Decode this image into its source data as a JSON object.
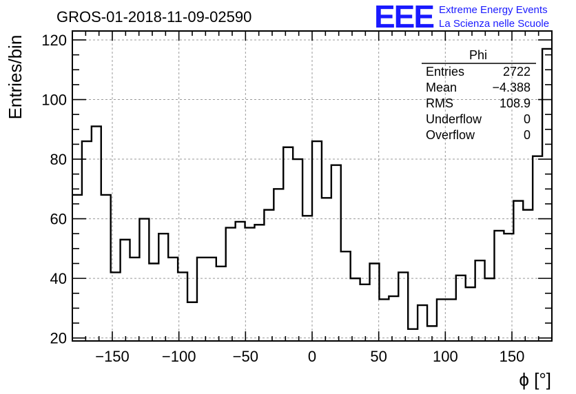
{
  "chart_data": {
    "type": "histogram",
    "title": "GROS-01-2018-11-09-02590",
    "xlabel": "ϕ [°]",
    "ylabel": "Entries/bin",
    "xlim": [
      -180,
      180
    ],
    "ylim": [
      19,
      123
    ],
    "bin_width": 7.2,
    "x_ticks": [
      -150,
      -100,
      -50,
      0,
      50,
      100,
      150
    ],
    "x_tick_labels": [
      "−150",
      "−100",
      "−50",
      "0",
      "50",
      "100",
      "150"
    ],
    "y_ticks": [
      20,
      40,
      60,
      80,
      100,
      120
    ],
    "y_tick_labels": [
      "20",
      "40",
      "60",
      "80",
      "100",
      "120"
    ],
    "grid": true,
    "values": [
      68,
      86,
      91,
      68,
      42,
      53,
      47,
      60,
      45,
      55,
      47,
      42,
      32,
      47,
      47,
      44,
      57,
      59,
      57,
      58,
      63,
      70,
      84,
      80,
      61,
      86,
      67,
      78,
      49,
      40,
      38,
      45,
      33,
      34,
      42,
      23,
      31,
      24,
      33,
      33,
      41,
      37,
      46,
      40,
      56,
      55,
      66,
      63,
      81,
      117
    ],
    "stats_box": {
      "name": "Phi",
      "rows": [
        {
          "label": "Entries",
          "value": "2722"
        },
        {
          "label": "Mean",
          "value": "−4.388"
        },
        {
          "label": "RMS",
          "value": "108.9"
        },
        {
          "label": "Underflow",
          "value": "0"
        },
        {
          "label": "Overflow",
          "value": "0"
        }
      ]
    }
  },
  "logo": {
    "mark": "EEE",
    "line1": "Extreme Energy Events",
    "line2": "La Scienza nelle Scuole",
    "color": "#1a1aff"
  }
}
